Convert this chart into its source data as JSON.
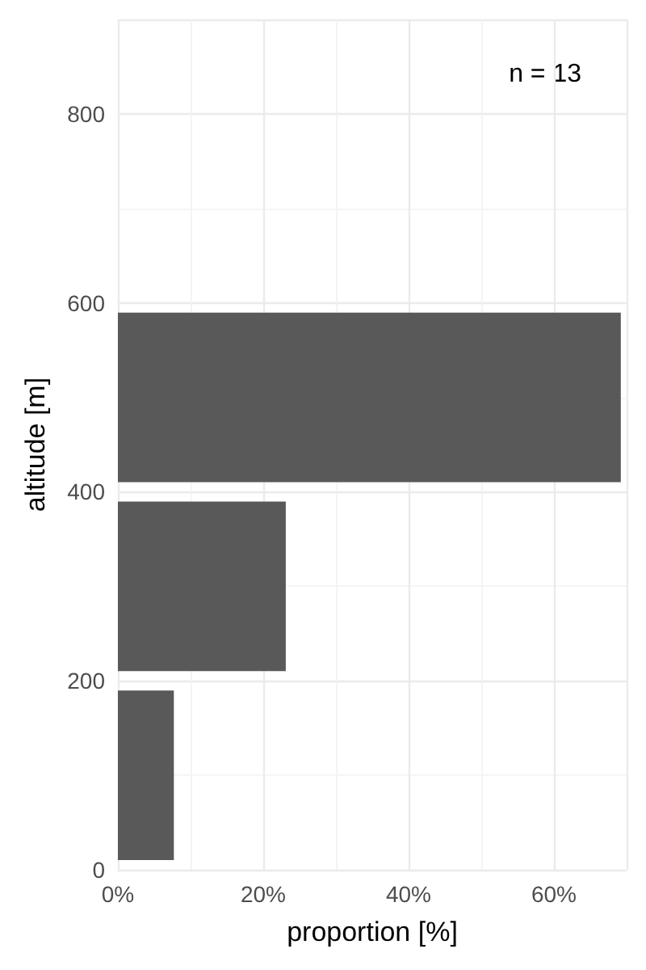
{
  "chart_data": {
    "type": "histogram",
    "orientation": "horizontal",
    "xlabel": "proportion [%]",
    "ylabel": "altitude [m]",
    "bins": [
      0,
      200,
      400,
      600
    ],
    "values": [
      7.7,
      23.1,
      69.2
    ],
    "color": "#595959",
    "xlim": [
      0,
      70
    ],
    "xticks": [
      {
        "value": 0,
        "label": "0%"
      },
      {
        "value": 20,
        "label": "20%"
      },
      {
        "value": 40,
        "label": "40%"
      },
      {
        "value": 60,
        "label": "60%"
      }
    ],
    "ylim": [
      0,
      900
    ],
    "yticks": [
      0,
      200,
      400,
      600,
      800
    ],
    "grid": true,
    "annotations": [
      "n = 13"
    ]
  }
}
